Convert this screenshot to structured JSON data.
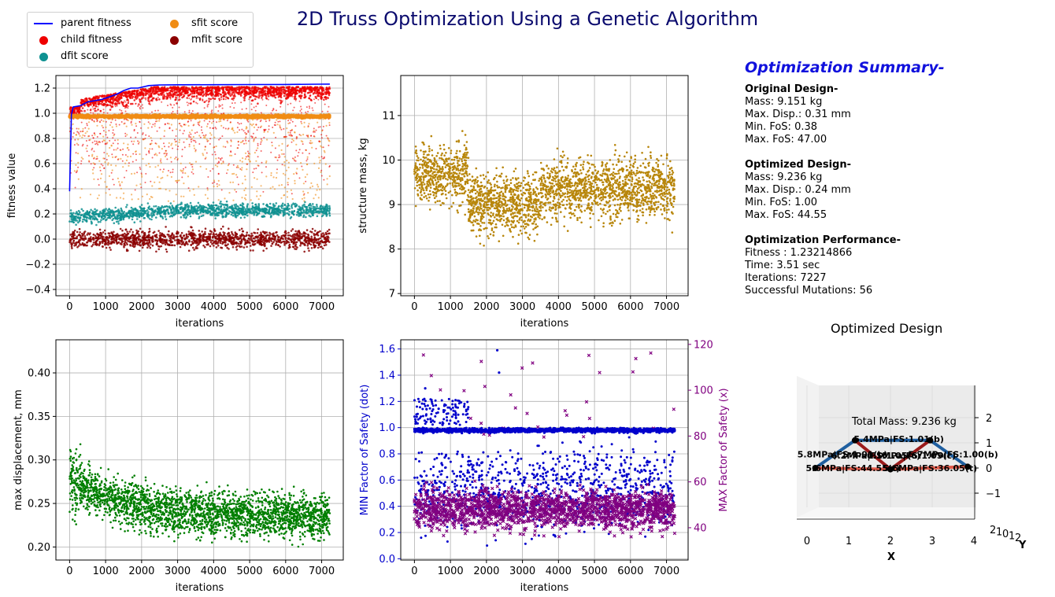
{
  "title": "2D Truss Optimization Using a Genetic Algorithm",
  "legend": [
    {
      "label": "parent fitness",
      "kind": "line",
      "color": "#0000ff"
    },
    {
      "label": "child fitness",
      "kind": "dot",
      "color": "#ee0000"
    },
    {
      "label": "dfit score",
      "kind": "dot",
      "color": "#0e9191"
    },
    {
      "label": "sfit score",
      "kind": "dot",
      "color": "#f08c14"
    },
    {
      "label": "mfit score",
      "kind": "dot",
      "color": "#8b0000"
    }
  ],
  "summary": {
    "heading": "Optimization Summary-",
    "original_heading": "Original Design-",
    "original_lines": [
      "Mass: 9.151 kg",
      "Max. Disp.: 0.31 mm",
      "Min. FoS: 0.38",
      "Max. FoS: 47.00"
    ],
    "optimized_heading": "Optimized Design-",
    "optimized_lines": [
      "Mass: 9.236 kg",
      "Max. Disp.: 0.24 mm",
      "Min. FoS: 1.00",
      "Max. FoS: 44.55"
    ],
    "performance_heading": "Optimization Performance-",
    "performance_lines": [
      "Fitness :  1.23214866",
      "Time:  3.51 sec",
      "Iterations: 7227",
      "Successful Mutations: 56"
    ]
  },
  "optimized_design_title": "Optimized Design",
  "chart_data": [
    {
      "type": "scatter",
      "xlabel": "iterations",
      "ylabel": "fitness value",
      "xlim": [
        -380,
        7600
      ],
      "ylim": [
        -0.45,
        1.3
      ],
      "xticks": [
        0,
        1000,
        2000,
        3000,
        4000,
        5000,
        6000,
        7000
      ],
      "yticks": [
        -0.4,
        -0.2,
        0.0,
        0.2,
        0.4,
        0.6,
        0.8,
        1.0,
        1.2
      ],
      "grid": true,
      "series": [
        {
          "name": "parent fitness",
          "kind": "line",
          "color": "#0000ff",
          "x": [
            0,
            50,
            100,
            300,
            500,
            700,
            900,
            1100,
            1300,
            1500,
            1700,
            1900,
            2050,
            2200,
            2500,
            3000,
            4000,
            5000,
            6000,
            7000,
            7227
          ],
          "y": [
            0.38,
            0.99,
            1.05,
            1.06,
            1.09,
            1.1,
            1.11,
            1.13,
            1.15,
            1.18,
            1.2,
            1.2,
            1.21,
            1.22,
            1.225,
            1.226,
            1.227,
            1.228,
            1.229,
            1.231,
            1.232
          ]
        },
        {
          "name": "child fitness",
          "color": "#ee0000",
          "range": [
            0.3,
            1.22
          ],
          "dense_range": [
            0.95,
            1.21
          ]
        },
        {
          "name": "sfit score",
          "color": "#f08c14",
          "range": [
            0.3,
            1.0
          ],
          "dense_range": [
            0.96,
            0.99
          ]
        },
        {
          "name": "dfit score",
          "color": "#0e9191",
          "range": [
            0.0,
            0.35
          ],
          "dense_range": [
            0.12,
            0.3
          ]
        },
        {
          "name": "mfit score",
          "color": "#8b0000",
          "range": [
            -0.27,
            0.15
          ],
          "dense_range": [
            -0.1,
            0.1
          ]
        }
      ]
    },
    {
      "type": "scatter",
      "xlabel": "iterations",
      "ylabel": "structure mass, kg",
      "xlim": [
        -380,
        7600
      ],
      "ylim": [
        6.95,
        11.9
      ],
      "xticks": [
        0,
        1000,
        2000,
        3000,
        4000,
        5000,
        6000,
        7000
      ],
      "yticks": [
        7,
        8,
        9,
        10,
        11
      ],
      "grid": true,
      "series": [
        {
          "name": "",
          "color": "#b8860b",
          "center": 9.35,
          "spread": 0.65,
          "range": [
            7.2,
            11.7
          ]
        }
      ]
    },
    {
      "type": "scatter",
      "xlabel": "iterations",
      "ylabel": "max displacement, mm",
      "xlim": [
        -380,
        7600
      ],
      "ylim": [
        0.185,
        0.438
      ],
      "xticks": [
        0,
        1000,
        2000,
        3000,
        4000,
        5000,
        6000,
        7000
      ],
      "yticks": [
        0.2,
        0.25,
        0.3,
        0.35,
        0.4
      ],
      "grid": true,
      "series": [
        {
          "name": "",
          "color": "#007f00",
          "start": 0.28,
          "end": 0.235,
          "spread": 0.025,
          "range": [
            0.2,
            0.425
          ]
        }
      ]
    },
    {
      "type": "scatter",
      "xlabel": "iterations",
      "ylabel": "MIN Factor of Safety (dot)",
      "y2label": "MAX Factor of Safety (x)",
      "xlim": [
        -380,
        7600
      ],
      "ylim": [
        -0.01,
        1.67
      ],
      "y2lim": [
        25.9,
        122
      ],
      "xticks": [
        0,
        1000,
        2000,
        3000,
        4000,
        5000,
        6000,
        7000
      ],
      "yticks": [
        0.0,
        0.2,
        0.4,
        0.6,
        0.8,
        1.0,
        1.2,
        1.4,
        1.6
      ],
      "y2ticks": [
        40,
        60,
        80,
        100,
        120
      ],
      "grid": true,
      "series": [
        {
          "name": "",
          "axis": "left",
          "marker": "dot",
          "color": "#0000cc",
          "dense_range": [
            0.95,
            1.01
          ],
          "range": [
            0.1,
            1.6
          ]
        },
        {
          "name": "",
          "axis": "right",
          "marker": "x",
          "color": "#800080",
          "center": 48,
          "spread": 8,
          "range": [
            30,
            118
          ]
        }
      ]
    },
    {
      "type": "truss3d",
      "title": "Optimized Design",
      "xlabel": "X",
      "ylabel": "Y",
      "xticks": [
        0,
        1,
        2,
        3,
        4
      ],
      "zticks": [
        -1,
        0,
        1,
        2
      ],
      "yticks": [
        "2",
        "1",
        "0",
        "1",
        "2"
      ],
      "total_mass_label": "Total Mass: 9.236 kg",
      "nodes": [
        [
          0.2,
          0
        ],
        [
          1.15,
          1.1
        ],
        [
          2.0,
          -0.05
        ],
        [
          2.95,
          1.1
        ],
        [
          3.85,
          0.05
        ]
      ],
      "members": [
        {
          "a": 0,
          "b": 1,
          "color": "#1f5fa0",
          "width": 4
        },
        {
          "a": 1,
          "b": 3,
          "color": "#1f5fa0",
          "width": 4
        },
        {
          "a": 3,
          "b": 4,
          "color": "#1f5fa0",
          "width": 4
        },
        {
          "a": 1,
          "b": 2,
          "color": "#9b1b1b",
          "width": 4
        },
        {
          "a": 2,
          "b": 3,
          "color": "#9b1b1b",
          "width": 4
        },
        {
          "a": 0,
          "b": 2,
          "color": "#e05a4a",
          "width": 4
        },
        {
          "a": 2,
          "b": 4,
          "color": "#e05a4a",
          "width": 4
        }
      ],
      "member_labels": [
        {
          "text": "5.4MPa|FS:1.01(b)",
          "x": 2.2,
          "y": 1.15
        },
        {
          "text": "5.8MPa|FS:1.01(b)",
          "x": 0.85,
          "y": 0.55
        },
        {
          "text": "5.7MPa|FS:1.00(b)",
          "x": 3.5,
          "y": 0.55
        },
        {
          "text": "5.6MPa|FS:44.55(t)",
          "x": 1.1,
          "y": 0.0
        },
        {
          "text": "5.6MPa|FS:36.05(t)",
          "x": 2.95,
          "y": 0.0
        },
        {
          "text": "6.2MPa|FS:1.05(c)",
          "x": 1.65,
          "y": 0.5
        },
        {
          "text": "6.1MPa|FS:1.05(c)",
          "x": 2.5,
          "y": 0.5
        }
      ]
    }
  ]
}
